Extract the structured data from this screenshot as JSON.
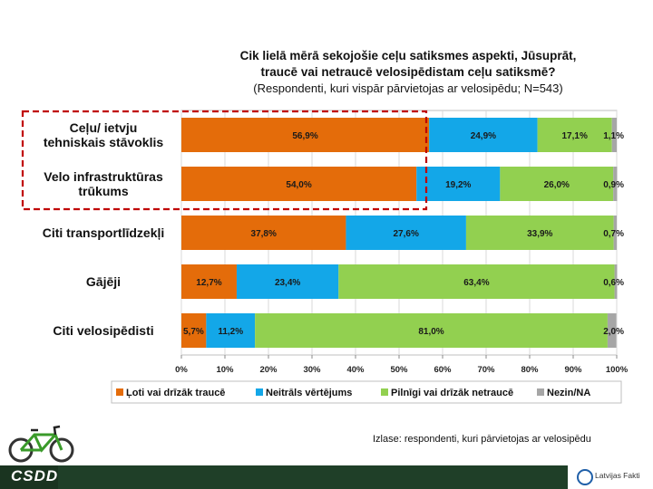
{
  "title_line1": "Cik lielā mērā sekojošie ceļu satiksmes aspekti, Jūsuprāt,",
  "title_line2": "traucē vai netraucē velosipēdistam ceļu satiksmē?",
  "title_line3": "(Respondenti, kuri vispār pārvietojas ar velosipēdu; N=543)",
  "footnote": "Izlase: respondenti, kuri pārvietojas ar velosipēdu",
  "logo_text": "CSDD",
  "partner_text": "Latvijas Fakti",
  "chart_data": {
    "type": "bar",
    "orientation": "horizontal",
    "stacked": true,
    "categories": [
      [
        "Ceļu/ ietvju",
        "tehniskais stāvoklis"
      ],
      [
        "Velo infrastruktūras",
        "trūkums"
      ],
      [
        "Citi transportlīdzekļi"
      ],
      [
        "Gājēji"
      ],
      [
        "Citi velosipēdisti"
      ]
    ],
    "series": [
      {
        "name": "Ļoti vai drīzāk traucē",
        "color": "#e46c0a",
        "values": [
          56.9,
          54.0,
          37.8,
          12.7,
          5.7
        ],
        "labels": [
          "56,9%",
          "54,0%",
          "37,8%",
          "12,7%",
          "5,7%"
        ]
      },
      {
        "name": "Neitrāls vērtējums",
        "color": "#13a7e8",
        "values": [
          24.9,
          19.2,
          27.6,
          23.4,
          11.2
        ],
        "labels": [
          "24,9%",
          "19,2%",
          "27,6%",
          "23,4%",
          "11,2%"
        ]
      },
      {
        "name": "Pilnīgi vai drīzāk netraucē",
        "color": "#92d050",
        "values": [
          17.1,
          26.0,
          33.9,
          63.4,
          81.0
        ],
        "labels": [
          "17,1%",
          "26,0%",
          "33,9%",
          "63,4%",
          "81,0%"
        ]
      },
      {
        "name": "Nezin/NA",
        "color": "#a6a6a6",
        "values": [
          1.1,
          0.9,
          0.7,
          0.6,
          2.0
        ],
        "labels": [
          "1,1%",
          "0,9%",
          "0,7%",
          "0,6%",
          "2,0%"
        ]
      }
    ],
    "xlim": [
      0,
      100
    ],
    "xticks": [
      "0%",
      "10%",
      "20%",
      "30%",
      "40%",
      "50%",
      "60%",
      "70%",
      "80%",
      "90%",
      "100%"
    ],
    "grid": true,
    "legend_position": "bottom",
    "highlight_rows": [
      0,
      1
    ],
    "highlight_style": "red dashed box"
  }
}
